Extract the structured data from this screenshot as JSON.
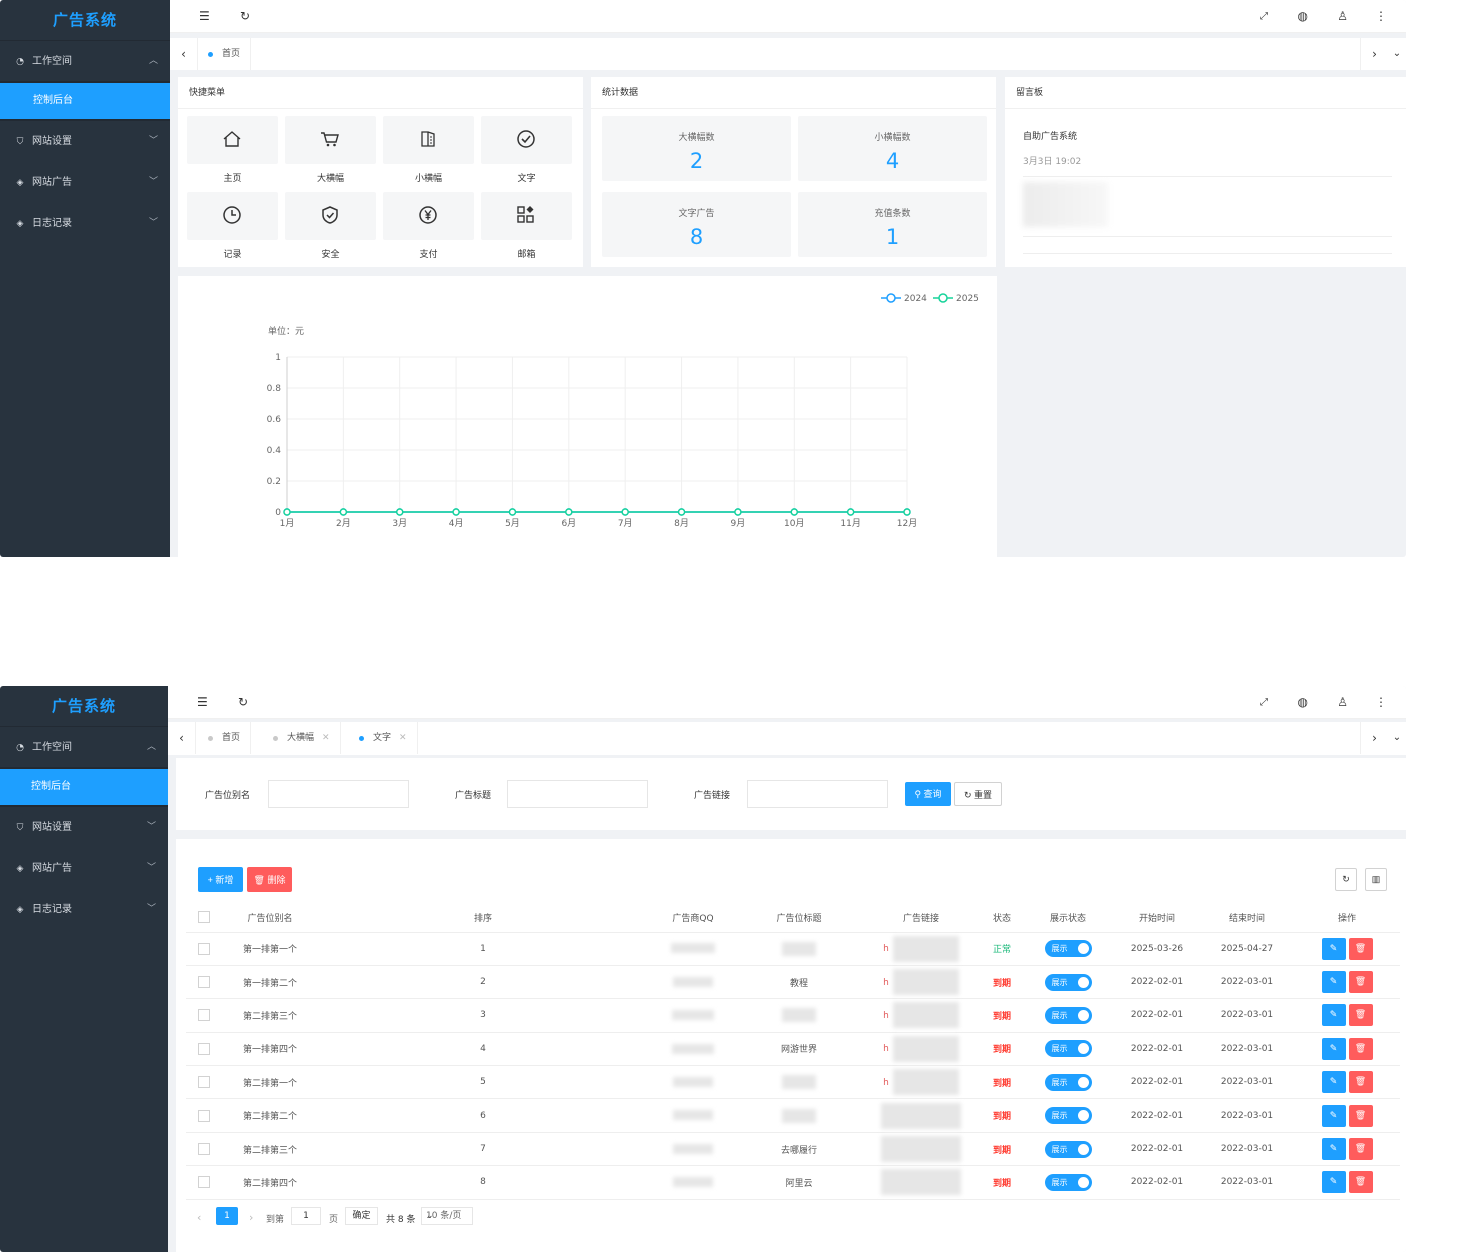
{
  "app": {
    "title": "广告系统"
  },
  "sidebar": {
    "workspace": "工作空间",
    "dashboard": "控制后台",
    "items": [
      {
        "label": "网站设置",
        "icon": "shield-icon"
      },
      {
        "label": "网站广告",
        "icon": "layers-icon"
      },
      {
        "label": "日志记录",
        "icon": "layers-icon"
      }
    ]
  },
  "tabs1": [
    "首页"
  ],
  "tabs2": [
    {
      "label": "首页",
      "closable": false,
      "active": false
    },
    {
      "label": "大横幅",
      "closable": true,
      "active": false
    },
    {
      "label": "文字",
      "closable": true,
      "active": true
    }
  ],
  "quick_menu": {
    "title": "快捷菜单",
    "items": [
      {
        "label": "主页",
        "icon": "home-icon"
      },
      {
        "label": "大横幅",
        "icon": "cart-icon"
      },
      {
        "label": "小横幅",
        "icon": "book-icon"
      },
      {
        "label": "文字",
        "icon": "check-circle-icon"
      },
      {
        "label": "记录",
        "icon": "clock-icon"
      },
      {
        "label": "安全",
        "icon": "shield-check-icon"
      },
      {
        "label": "支付",
        "icon": "yen-icon"
      },
      {
        "label": "邮箱",
        "icon": "grid-icon"
      }
    ]
  },
  "stats": {
    "title": "统计数据",
    "items": [
      {
        "label": "大横幅数",
        "value": "2"
      },
      {
        "label": "小横幅数",
        "value": "4"
      },
      {
        "label": "文字广告",
        "value": "8"
      },
      {
        "label": "充值条数",
        "value": "1"
      }
    ]
  },
  "board": {
    "title": "留言板",
    "entry_title": "自助广告系统",
    "entry_time": "3月3日 19:02"
  },
  "chart_data": {
    "type": "line",
    "categories": [
      "1月",
      "2月",
      "3月",
      "4月",
      "5月",
      "6月",
      "7月",
      "8月",
      "9月",
      "10月",
      "11月",
      "12月"
    ],
    "series": [
      {
        "name": "2024",
        "values": [
          0,
          0,
          0,
          0,
          0,
          0,
          0,
          0,
          0,
          0,
          0,
          0
        ],
        "color": "#1e9fff"
      },
      {
        "name": "2025",
        "values": [
          0,
          0,
          0,
          0,
          0,
          0,
          0,
          0,
          0,
          0,
          0,
          0
        ],
        "color": "#16d39a"
      }
    ],
    "ylabel": "单位：元",
    "yticks": [
      "0",
      "0.2",
      "0.4",
      "0.6",
      "0.8",
      "1"
    ],
    "ylim": [
      0,
      1
    ],
    "grid": true,
    "legend": "top-right"
  },
  "search": {
    "label1": "广告位别名",
    "label2": "广告标题",
    "label3": "广告链接",
    "query": "查询",
    "reset": "重置"
  },
  "toolbar": {
    "add": "+ 新增",
    "delete": "删除"
  },
  "table": {
    "headers": [
      "广告位别名",
      "排序",
      "广告商QQ",
      "广告位标题",
      "广告链接",
      "状态",
      "展示状态",
      "开始时间",
      "结束时间",
      "操作"
    ],
    "rows": [
      {
        "alias": "第一排第一个",
        "sort": "1",
        "title": "",
        "link": "h",
        "status": "正常",
        "show": "展示",
        "start": "2025-03-26",
        "end": "2025-04-27"
      },
      {
        "alias": "第一排第二个",
        "sort": "2",
        "title": "教程",
        "link": "h",
        "status": "到期",
        "show": "展示",
        "start": "2022-02-01",
        "end": "2022-03-01"
      },
      {
        "alias": "第二排第三个",
        "sort": "3",
        "title": "",
        "link": "h",
        "status": "到期",
        "show": "展示",
        "start": "2022-02-01",
        "end": "2022-03-01"
      },
      {
        "alias": "第一排第四个",
        "sort": "4",
        "title": "网游世界",
        "link": "h",
        "status": "到期",
        "show": "展示",
        "start": "2022-02-01",
        "end": "2022-03-01"
      },
      {
        "alias": "第二排第一个",
        "sort": "5",
        "title": "",
        "link": "h",
        "status": "到期",
        "show": "展示",
        "start": "2022-02-01",
        "end": "2022-03-01"
      },
      {
        "alias": "第二排第二个",
        "sort": "6",
        "title": "",
        "link": "",
        "status": "到期",
        "show": "展示",
        "start": "2022-02-01",
        "end": "2022-03-01"
      },
      {
        "alias": "第二排第三个",
        "sort": "7",
        "title": "去哪履行",
        "link": "",
        "status": "到期",
        "show": "展示",
        "start": "2022-02-01",
        "end": "2022-03-01"
      },
      {
        "alias": "第二排第四个",
        "sort": "8",
        "title": "阿里云",
        "link": "",
        "status": "到期",
        "show": "展示",
        "start": "2022-02-01",
        "end": "2022-03-01"
      }
    ]
  },
  "pager": {
    "current": "1",
    "goto": "到第",
    "page_input": "1",
    "page_unit": "页",
    "confirm": "确定",
    "total": "共 8 条",
    "per_page": "10 条/页"
  },
  "colors": {
    "accent": "#1e9fff",
    "sidebar": "#28333e",
    "danger": "#ff5c5c",
    "success": "#16b777"
  }
}
